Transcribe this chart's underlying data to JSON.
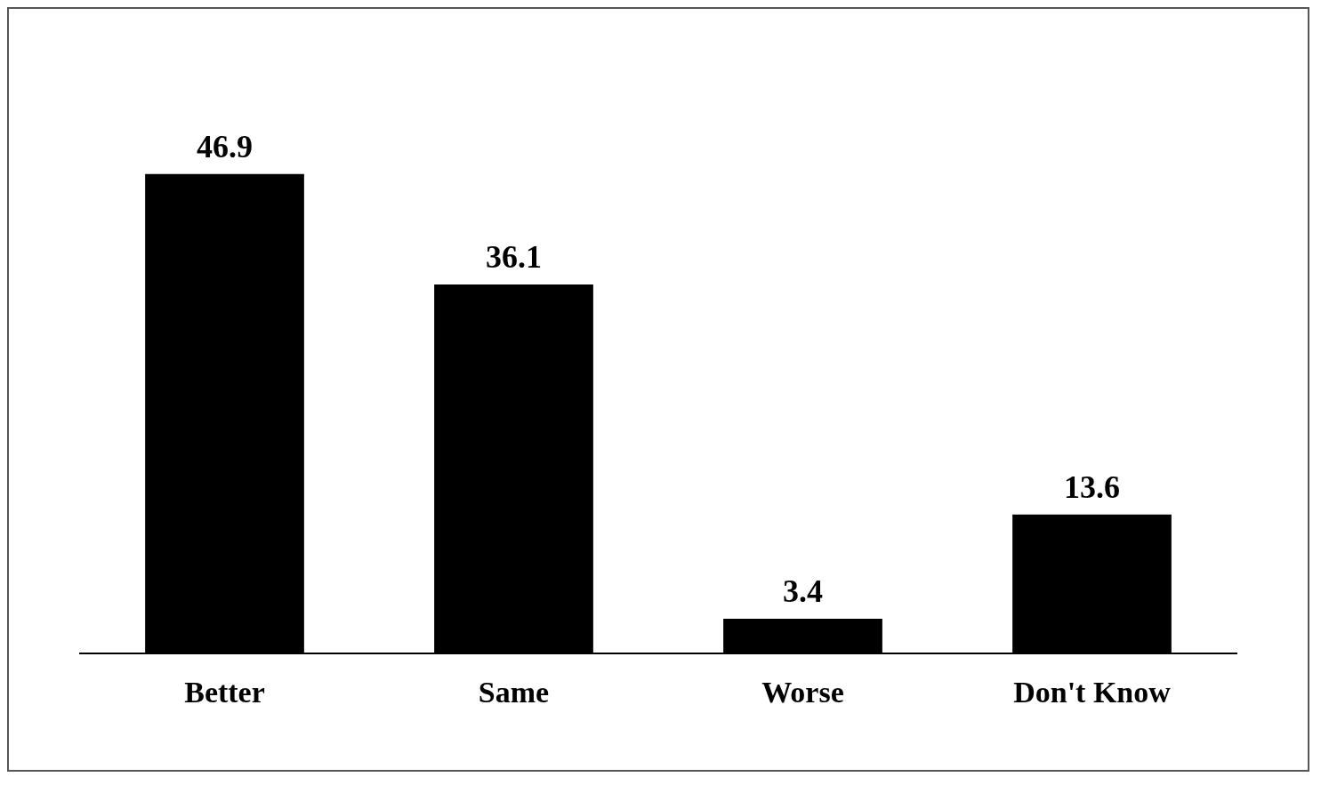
{
  "chart_data": {
    "type": "bar",
    "categories": [
      "Better",
      "Same",
      "Worse",
      "Don't Know"
    ],
    "values": [
      46.9,
      36.1,
      3.4,
      13.6
    ],
    "color": "#000000",
    "data_labels": true,
    "tick_labels": "x",
    "grid": false,
    "legend": false
  }
}
